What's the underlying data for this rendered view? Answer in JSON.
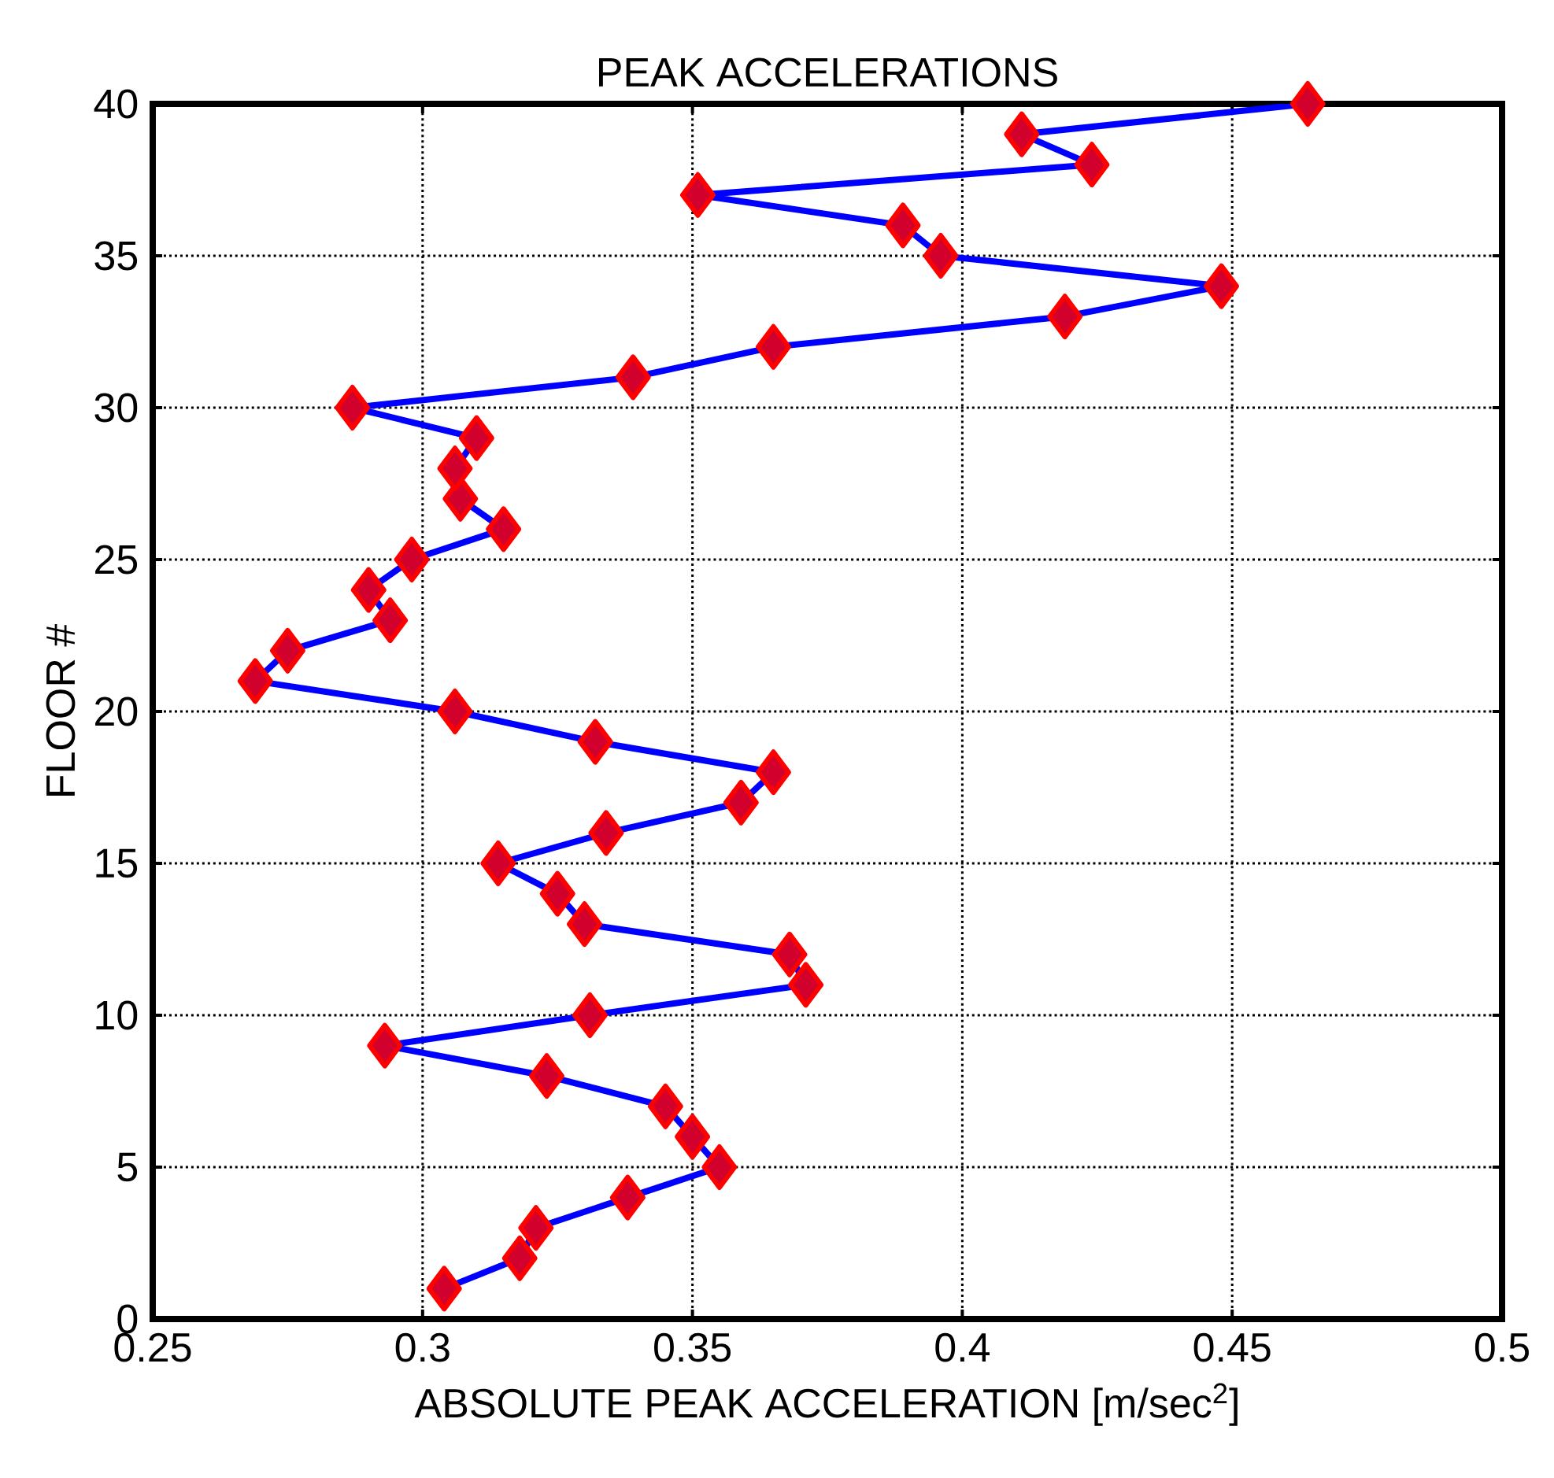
{
  "chart_data": {
    "type": "line",
    "title": "PEAK ACCELERATIONS",
    "xlabel": "ABSOLUTE PEAK ACCELERATION [m/sec$^{2}$]",
    "ylabel": "FLOOR #",
    "xlim": [
      0.25,
      0.5
    ],
    "xticks": [
      0.25,
      0.3,
      0.35,
      0.4,
      0.45,
      0.5
    ],
    "ylim": [
      0,
      40
    ],
    "yticks": [
      0,
      5,
      10,
      15,
      20,
      25,
      30,
      35,
      40
    ],
    "grid": true,
    "marker": "diamond",
    "line_style": "solid",
    "series": [
      {
        "color": "#0000ff",
        "x": [
          0.304,
          0.318,
          0.321,
          0.338,
          0.355,
          0.35,
          0.345,
          0.323,
          0.293,
          0.331,
          0.371,
          0.368,
          0.33,
          0.325,
          0.314,
          0.334,
          0.359,
          0.365,
          0.332,
          0.306,
          0.269,
          0.275,
          0.294,
          0.29,
          0.298,
          0.315,
          0.307,
          0.306,
          0.31,
          0.287,
          0.339,
          0.365,
          0.419,
          0.448,
          0.396,
          0.389,
          0.351,
          0.424,
          0.411,
          0.464
        ],
        "values": [
          1,
          2,
          3,
          4,
          5,
          6,
          7,
          8,
          9,
          10,
          11,
          12,
          13,
          14,
          15,
          16,
          17,
          18,
          19,
          20,
          21,
          22,
          23,
          24,
          25,
          26,
          27,
          28,
          29,
          30,
          31,
          32,
          33,
          34,
          35,
          36,
          37,
          38,
          39,
          40
        ]
      }
    ]
  }
}
